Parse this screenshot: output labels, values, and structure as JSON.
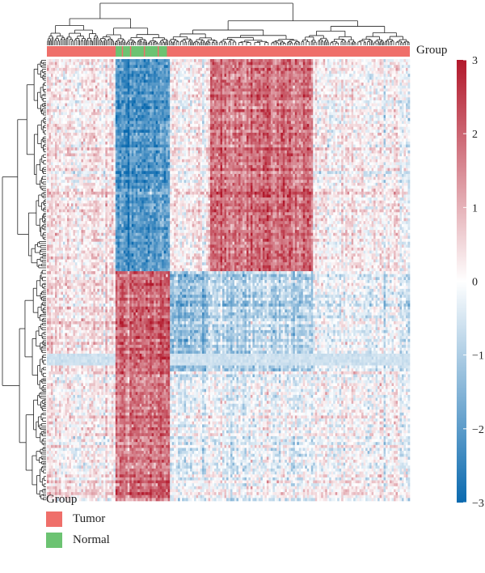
{
  "chart_data": {
    "type": "heatmap",
    "title": "",
    "annotation_label": "Group",
    "colorbar": {
      "ticks": [
        3,
        2,
        1,
        0,
        -1,
        -2,
        -3
      ],
      "tick_labels": [
        "3",
        "2",
        "1",
        "0",
        "−1",
        "−2",
        "−3"
      ],
      "colors": {
        "high": "#b2182b",
        "mid": "#ffffff",
        "low": "#0b6aaf"
      },
      "range": [
        -3,
        3
      ]
    },
    "groups": [
      {
        "name": "Tumor",
        "color": "#ef6f6a"
      },
      {
        "name": "Normal",
        "color": "#6cc372"
      }
    ],
    "column_group_order": [
      "Tumor",
      "Normal",
      "Tumor"
    ],
    "row_blocks": [
      {
        "name": "block-1",
        "column_block_means": [
          0.3,
          -2.1,
          0.2,
          1.9,
          0.1
        ]
      },
      {
        "name": "block-2",
        "column_block_means": [
          0.4,
          2.0,
          -1.3,
          -0.8,
          -0.3
        ]
      },
      {
        "name": "block-3",
        "column_block_means": [
          0.2,
          1.8,
          -0.2,
          -0.1,
          0.0
        ]
      }
    ],
    "dendrograms": {
      "rows": true,
      "columns": true
    },
    "legend_placement": "bottom-left"
  }
}
